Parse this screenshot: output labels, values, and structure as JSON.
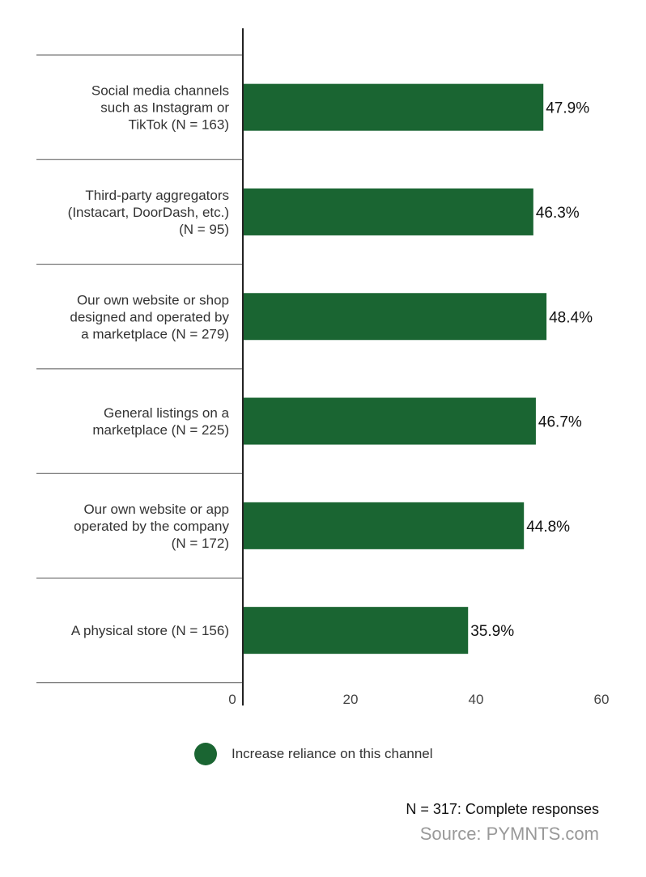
{
  "chart_data": {
    "type": "bar",
    "orientation": "horizontal",
    "categories": [
      [
        "Social media channels",
        "such as Instagram or",
        "TikTok (N = 163)"
      ],
      [
        "Third-party aggregators",
        "(Instacart, DoorDash, etc.)",
        "(N = 95)"
      ],
      [
        "Our own website or shop",
        "designed and operated by",
        "a marketplace (N = 279)"
      ],
      [
        "General listings on a",
        "marketplace (N = 225)"
      ],
      [
        "Our own website or app",
        "operated by the company",
        "(N = 172)"
      ],
      [
        "A physical store (N = 156)"
      ]
    ],
    "series": [
      {
        "name": "Increase reliance on this channel",
        "values": [
          47.9,
          46.3,
          48.4,
          46.7,
          44.8,
          35.9
        ],
        "color": "#1a6532"
      }
    ],
    "value_labels": [
      "47.9%",
      "46.3%",
      "48.4%",
      "46.7%",
      "44.8%",
      "35.9%"
    ],
    "xticks": [
      0,
      20,
      40,
      60
    ],
    "xlim": [
      0,
      60
    ],
    "legend": "bottom",
    "grid": false
  },
  "footnote": "N = 317: Complete responses",
  "source": "Source: PYMNTS.com"
}
